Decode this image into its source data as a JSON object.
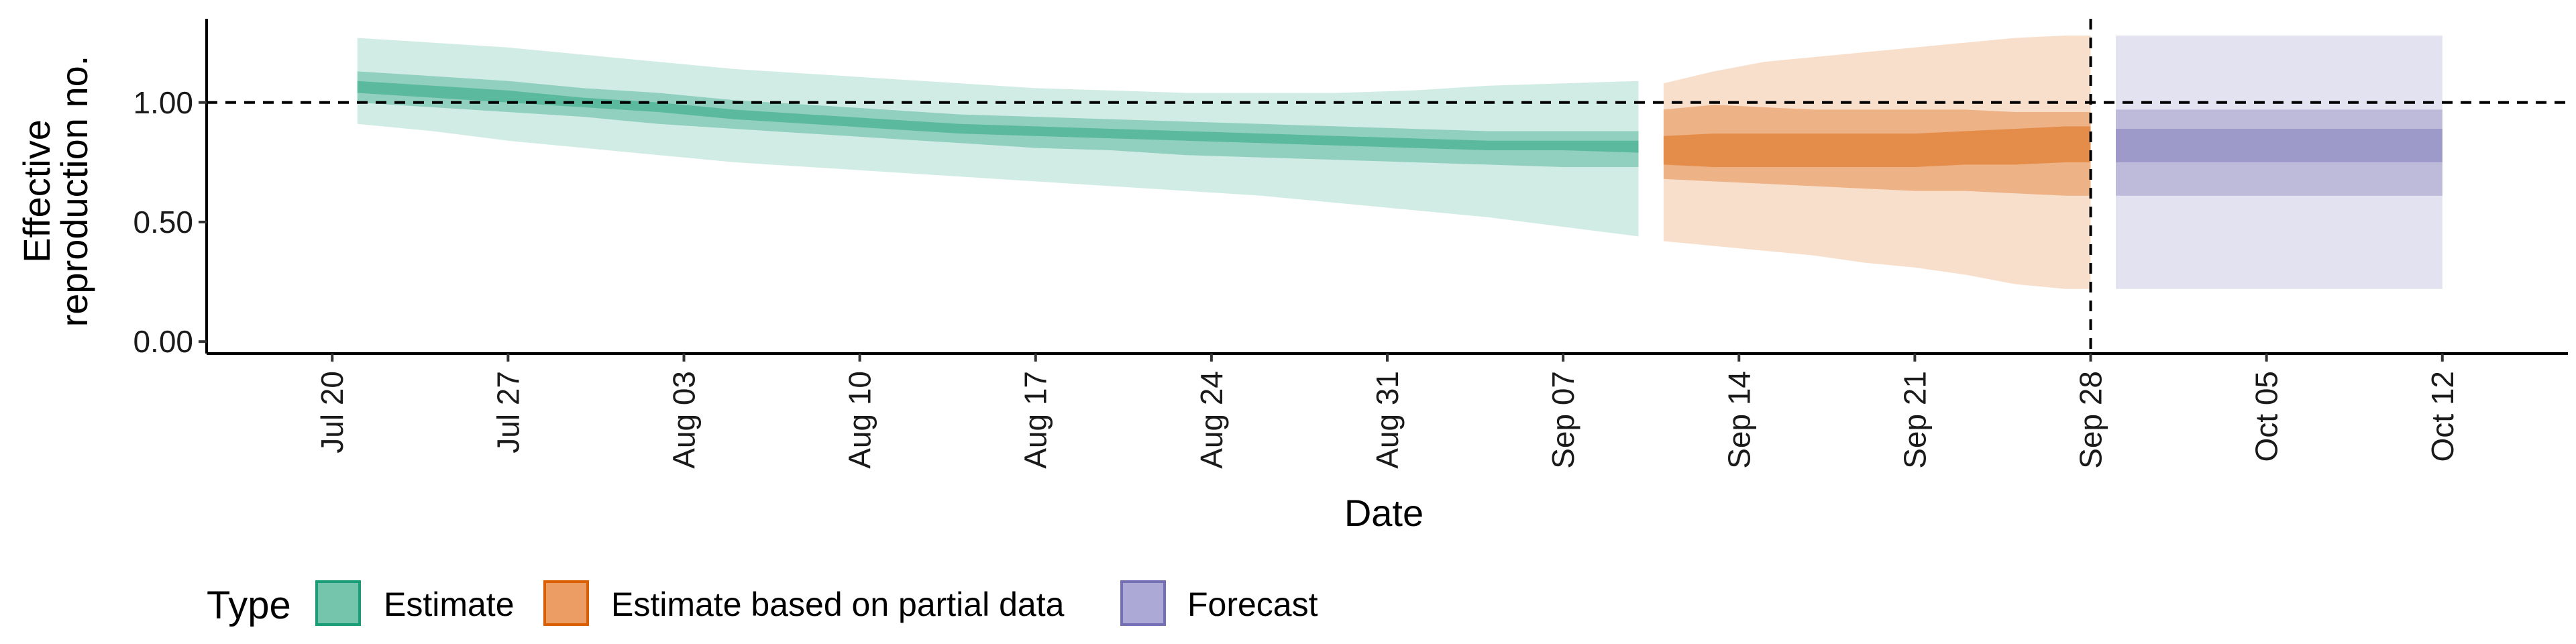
{
  "chart_data": {
    "type": "area",
    "xlabel": "Date",
    "ylabel_lines": [
      "Effective",
      "reproduction no."
    ],
    "ylim": [
      -0.05,
      1.35
    ],
    "y_ticks": [
      0.0,
      0.5,
      1.0
    ],
    "y_tick_labels": [
      "0.00",
      "0.50",
      "1.00"
    ],
    "xlim": [
      "2020-07-15",
      "2020-10-17"
    ],
    "x_ticks": [
      "2020-07-20",
      "2020-07-27",
      "2020-08-03",
      "2020-08-10",
      "2020-08-17",
      "2020-08-24",
      "2020-08-31",
      "2020-09-07",
      "2020-09-14",
      "2020-09-21",
      "2020-09-28",
      "2020-10-05",
      "2020-10-12"
    ],
    "x_tick_labels": [
      "Jul 20",
      "Jul 27",
      "Aug 03",
      "Aug 10",
      "Aug 17",
      "Aug 24",
      "Aug 31",
      "Sep 07",
      "Sep 14",
      "Sep 21",
      "Sep 28",
      "Oct 05",
      "Oct 12"
    ],
    "reference_hline": 1.0,
    "reference_vline": "2020-09-28",
    "grid": false,
    "legend": {
      "position": "bottom-left",
      "title": "Type",
      "entries": [
        "Estimate",
        "Estimate based on partial data",
        "Forecast"
      ]
    },
    "colors": {
      "Estimate": "#1b9e77",
      "Estimate based on partial data": "#d95f02",
      "Forecast": "#7570b3"
    },
    "series": [
      {
        "name": "Estimate",
        "dates": [
          "2020-07-21",
          "2020-07-24",
          "2020-07-27",
          "2020-07-30",
          "2020-08-02",
          "2020-08-05",
          "2020-08-08",
          "2020-08-11",
          "2020-08-14",
          "2020-08-17",
          "2020-08-20",
          "2020-08-23",
          "2020-08-26",
          "2020-08-29",
          "2020-09-01",
          "2020-09-04",
          "2020-09-07",
          "2020-09-10"
        ],
        "lower_90": [
          0.91,
          0.88,
          0.84,
          0.81,
          0.78,
          0.75,
          0.73,
          0.71,
          0.69,
          0.67,
          0.65,
          0.63,
          0.61,
          0.58,
          0.55,
          0.52,
          0.48,
          0.44
        ],
        "lower_50": [
          1.0,
          0.98,
          0.96,
          0.94,
          0.91,
          0.89,
          0.87,
          0.85,
          0.83,
          0.81,
          0.8,
          0.78,
          0.77,
          0.76,
          0.75,
          0.74,
          0.73,
          0.73
        ],
        "upper_50": [
          1.13,
          1.11,
          1.09,
          1.06,
          1.04,
          1.01,
          0.99,
          0.97,
          0.95,
          0.94,
          0.93,
          0.92,
          0.91,
          0.9,
          0.89,
          0.88,
          0.88,
          0.88
        ],
        "upper_90": [
          1.27,
          1.25,
          1.23,
          1.2,
          1.17,
          1.14,
          1.12,
          1.1,
          1.08,
          1.06,
          1.05,
          1.04,
          1.04,
          1.04,
          1.05,
          1.07,
          1.08,
          1.09
        ],
        "lower_20": [
          1.04,
          1.02,
          1.0,
          0.98,
          0.96,
          0.93,
          0.91,
          0.89,
          0.87,
          0.86,
          0.85,
          0.84,
          0.83,
          0.82,
          0.81,
          0.8,
          0.8,
          0.79
        ],
        "upper_20": [
          1.09,
          1.07,
          1.05,
          1.02,
          1.0,
          0.97,
          0.95,
          0.93,
          0.91,
          0.9,
          0.89,
          0.88,
          0.87,
          0.86,
          0.85,
          0.84,
          0.84,
          0.84
        ]
      },
      {
        "name": "Estimate based on partial data",
        "dates": [
          "2020-09-11",
          "2020-09-13",
          "2020-09-15",
          "2020-09-17",
          "2020-09-19",
          "2020-09-21",
          "2020-09-23",
          "2020-09-25",
          "2020-09-27",
          "2020-09-28"
        ],
        "lower_90": [
          0.42,
          0.4,
          0.38,
          0.36,
          0.33,
          0.31,
          0.28,
          0.24,
          0.22,
          0.22
        ],
        "lower_50": [
          0.68,
          0.67,
          0.66,
          0.65,
          0.64,
          0.63,
          0.63,
          0.62,
          0.61,
          0.61
        ],
        "upper_50": [
          0.97,
          0.99,
          0.98,
          0.97,
          0.97,
          0.97,
          0.97,
          0.96,
          0.96,
          0.96
        ],
        "upper_90": [
          1.08,
          1.13,
          1.17,
          1.19,
          1.21,
          1.23,
          1.25,
          1.27,
          1.28,
          1.28
        ],
        "lower_20": [
          0.74,
          0.73,
          0.73,
          0.73,
          0.73,
          0.73,
          0.74,
          0.74,
          0.75,
          0.75
        ],
        "upper_20": [
          0.86,
          0.87,
          0.87,
          0.87,
          0.87,
          0.87,
          0.88,
          0.89,
          0.9,
          0.9
        ]
      },
      {
        "name": "Forecast",
        "dates": [
          "2020-09-29",
          "2020-10-12"
        ],
        "lower_90": [
          0.22,
          0.22
        ],
        "lower_50": [
          0.61,
          0.61
        ],
        "upper_50": [
          0.97,
          0.97
        ],
        "upper_90": [
          1.28,
          1.28
        ],
        "lower_20": [
          0.75,
          0.75
        ],
        "upper_20": [
          0.89,
          0.89
        ]
      }
    ]
  }
}
